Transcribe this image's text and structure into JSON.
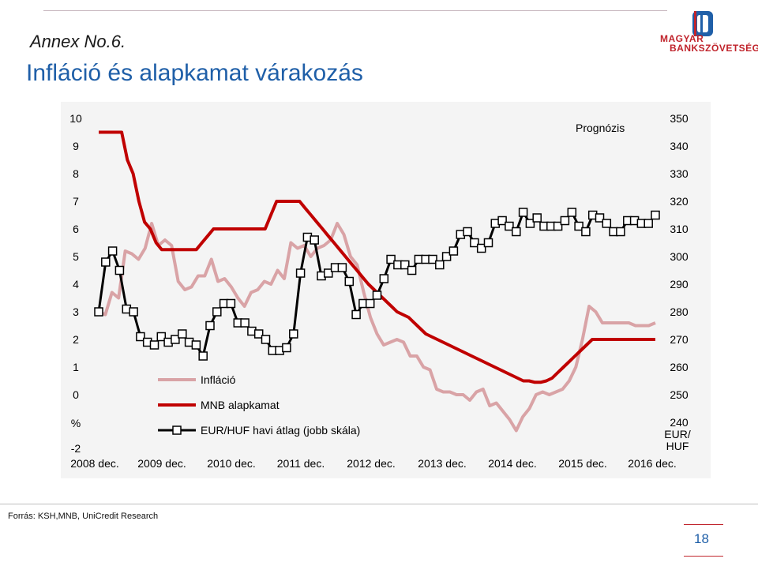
{
  "header": {
    "annex": "Annex No.6.",
    "title": "Infláció és alapkamat várakozás",
    "logo_line1": "MAGYAR",
    "logo_line2": "BANKSZÖVETSÉG"
  },
  "footer": {
    "source": "Forrás: KSH,MNB, UniCredit Research",
    "page_number": "18"
  },
  "colors": {
    "inflation": "#d9a3a6",
    "base_rate": "#c00000",
    "eurhuf": "#000000",
    "brand": "#1f5fa8",
    "accent": "#c0242c"
  },
  "chart_data": {
    "type": "line",
    "title": "",
    "annotation": "Prognózis",
    "x_tick_labels": [
      "2008 dec.",
      "2009 dec.",
      "2010 dec.",
      "2011 dec.",
      "2012 dec.",
      "2013 dec.",
      "2014 dec.",
      "2015 dec.",
      "2016 dec."
    ],
    "y_left": {
      "ticks": [
        "10",
        "9",
        "8",
        "7",
        "6",
        "5",
        "4",
        "3",
        "2",
        "1",
        "0",
        "%",
        "-2"
      ],
      "ylim": [
        -2,
        10
      ],
      "unit": "%"
    },
    "y_right": {
      "ticks": [
        "350",
        "340",
        "330",
        "320",
        "310",
        "300",
        "290",
        "280",
        "270",
        "260",
        "250",
        "240"
      ],
      "unit_line1": "EUR/",
      "unit_line2": "HUF",
      "ylim": [
        233,
        350
      ]
    },
    "legend": {
      "placement": "inside-bottom-left",
      "entries": [
        "Infláció",
        "MNB alapkamat",
        "EUR/HUF havi átlag (jobb skála)"
      ]
    },
    "series": [
      {
        "name": "Infláció",
        "axis": "left",
        "step": 3,
        "values": [
          3.0,
          2.9,
          3.7,
          3.5,
          5.2,
          5.1,
          4.9,
          5.3,
          6.2,
          5.4,
          5.6,
          5.4,
          4.1,
          3.8,
          3.9,
          4.3,
          4.3,
          4.9,
          4.1,
          4.2,
          3.9,
          3.5,
          3.2,
          3.7,
          3.8,
          4.1,
          4.0,
          4.5,
          4.2,
          5.5,
          5.3,
          5.4,
          5.0,
          5.3,
          5.4,
          5.6,
          6.2,
          5.8,
          5.0,
          4.7,
          3.7,
          2.8,
          2.2,
          1.8,
          1.9,
          2.0,
          1.9,
          1.4,
          1.4,
          1.0,
          0.9,
          0.2,
          0.1,
          0.1,
          0.0,
          0.0,
          -0.2,
          0.1,
          0.2,
          -0.4,
          -0.3,
          -0.6,
          -0.9,
          -1.3,
          -0.8,
          -0.5,
          0.0,
          0.1,
          0.0,
          0.1,
          0.2,
          0.5,
          1.0,
          2.0,
          3.2,
          3.0,
          2.6,
          2.6,
          2.6,
          2.6,
          2.6,
          2.5,
          2.5,
          2.5,
          2.6
        ]
      },
      {
        "name": "MNB alapkamat",
        "axis": "left",
        "step": 3,
        "values": [
          9.5,
          9.5,
          9.5,
          9.5,
          9.5,
          8.5,
          8.0,
          7.0,
          6.25,
          6.0,
          5.5,
          5.25,
          5.25,
          5.25,
          5.25,
          5.25,
          5.25,
          5.25,
          5.5,
          5.75,
          6.0,
          6.0,
          6.0,
          6.0,
          6.0,
          6.0,
          6.0,
          6.0,
          6.0,
          6.0,
          6.5,
          7.0,
          7.0,
          7.0,
          7.0,
          7.0,
          6.75,
          6.5,
          6.25,
          6.0,
          5.75,
          5.5,
          5.25,
          5.0,
          4.75,
          4.5,
          4.25,
          4.0,
          3.8,
          3.6,
          3.4,
          3.2,
          3.0,
          2.9,
          2.8,
          2.6,
          2.4,
          2.2,
          2.1,
          2.0,
          1.9,
          1.8,
          1.7,
          1.6,
          1.5,
          1.4,
          1.3,
          1.2,
          1.1,
          1.0,
          0.9,
          0.8,
          0.7,
          0.6,
          0.5,
          0.5,
          0.45,
          0.45,
          0.5,
          0.6,
          0.8,
          1.0,
          1.2,
          1.4,
          1.6,
          1.8,
          2.0,
          2.0,
          2.0,
          2.0,
          2.0,
          2.0,
          2.0,
          2.0,
          2.0,
          2.0,
          2.0,
          2.0
        ]
      },
      {
        "name": "EUR/HUF havi átlag (jobb skála)",
        "axis": "right",
        "step": 8,
        "values": [
          280,
          298,
          302,
          295,
          281,
          280,
          271,
          269,
          268,
          271,
          269,
          270,
          272,
          269,
          268,
          264,
          275,
          280,
          283,
          283,
          276,
          276,
          273,
          272,
          270,
          266,
          266,
          267,
          272,
          294,
          307,
          306,
          293,
          294,
          296,
          296,
          291,
          279,
          283,
          283,
          286,
          292,
          299,
          297,
          297,
          295,
          299,
          299,
          299,
          297,
          300,
          302,
          308,
          309,
          305,
          303,
          305,
          312,
          313,
          311,
          309,
          316,
          312,
          314,
          311,
          311,
          311,
          313,
          316,
          311,
          309,
          315,
          314,
          312,
          309,
          309,
          313,
          313,
          312,
          312,
          315
        ]
      }
    ]
  }
}
